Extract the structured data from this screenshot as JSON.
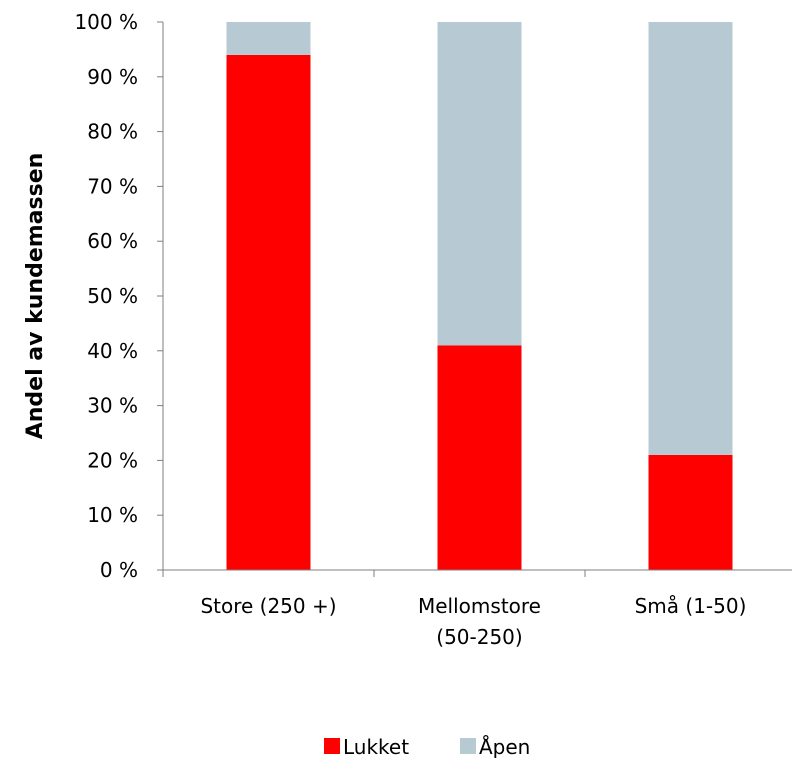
{
  "chart_data": {
    "type": "bar",
    "stacked": true,
    "title": "",
    "xlabel": "",
    "ylabel": "Andel av kundemassen",
    "ylim": [
      0,
      100
    ],
    "yticks": [
      0,
      10,
      20,
      30,
      40,
      50,
      60,
      70,
      80,
      90,
      100
    ],
    "ytick_labels": [
      "0 %",
      "10 %",
      "20 %",
      "30 %",
      "40 %",
      "50 %",
      "60 %",
      "70 %",
      "80 %",
      "90 %",
      "100 %"
    ],
    "categories": [
      [
        "Store (250 +)"
      ],
      [
        "Mellomstore",
        "(50-250)"
      ],
      [
        "Små (1-50)"
      ]
    ],
    "series": [
      {
        "name": "Lukket",
        "color": "#FF0000",
        "values": [
          94,
          41,
          21
        ]
      },
      {
        "name": "Åpen",
        "color": "#B7C9D3",
        "values": [
          6,
          59,
          79
        ]
      }
    ],
    "grid": false,
    "legend": "bottom-center"
  }
}
